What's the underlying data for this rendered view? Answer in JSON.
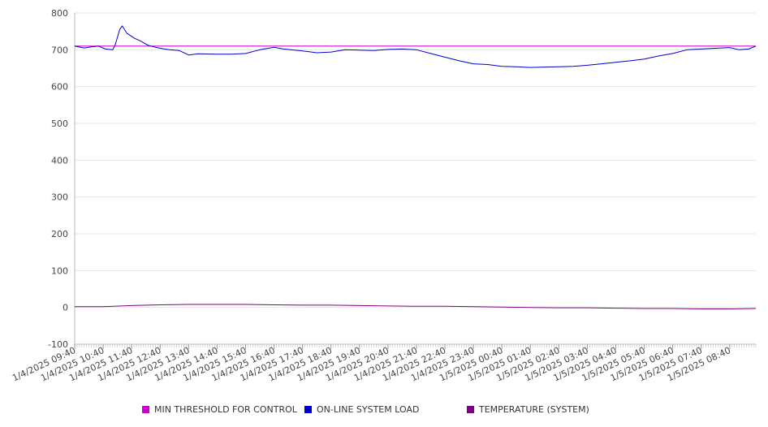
{
  "chart_data": {
    "type": "line",
    "ylim": [
      -100,
      800
    ],
    "yticks": [
      -100,
      0,
      100,
      200,
      300,
      400,
      500,
      600,
      700,
      800
    ],
    "grid": true,
    "legend_placement": "bottom",
    "x_start": "1/4/2025 09:40",
    "x_end": "1/5/2025 09:35",
    "x_tick_labels": [
      "1/4/2025 09:40",
      "1/4/2025 10:40",
      "1/4/2025 11:40",
      "1/4/2025 12:40",
      "1/4/2025 13:40",
      "1/4/2025 14:40",
      "1/4/2025 15:40",
      "1/4/2025 16:40",
      "1/4/2025 17:40",
      "1/4/2025 18:40",
      "1/4/2025 19:40",
      "1/4/2025 20:40",
      "1/4/2025 21:40",
      "1/4/2025 22:40",
      "1/4/2025 23:40",
      "1/5/2025 00:40",
      "1/5/2025 01:40",
      "1/5/2025 02:40",
      "1/5/2025 03:40",
      "1/5/2025 04:40",
      "1/5/2025 05:40",
      "1/5/2025 06:40",
      "1/5/2025 07:40",
      "1/5/2025 08:40"
    ],
    "series": [
      {
        "name": "MIN THRESHOLD FOR CONTROL",
        "color": "#cc00cc",
        "style": "line",
        "x": [
          "1/4/2025 09:40",
          "1/5/2025 09:35"
        ],
        "y": [
          710,
          710
        ]
      },
      {
        "name": "ON-LINE SYSTEM LOAD",
        "color": "#0000cc",
        "style": "line",
        "x": [
          "1/4/2025 09:40",
          "1/4/2025 10:00",
          "1/4/2025 10:15",
          "1/4/2025 10:30",
          "1/4/2025 10:45",
          "1/4/2025 11:00",
          "1/4/2025 11:05",
          "1/4/2025 11:15",
          "1/4/2025 11:20",
          "1/4/2025 11:30",
          "1/4/2025 11:45",
          "1/4/2025 12:00",
          "1/4/2025 12:15",
          "1/4/2025 12:30",
          "1/4/2025 12:45",
          "1/4/2025 13:00",
          "1/4/2025 13:20",
          "1/4/2025 13:40",
          "1/4/2025 14:00",
          "1/4/2025 14:40",
          "1/4/2025 15:10",
          "1/4/2025 15:40",
          "1/4/2025 16:10",
          "1/4/2025 16:40",
          "1/4/2025 17:00",
          "1/4/2025 17:40",
          "1/4/2025 18:10",
          "1/4/2025 18:40",
          "1/4/2025 19:10",
          "1/4/2025 19:40",
          "1/4/2025 20:10",
          "1/4/2025 20:40",
          "1/4/2025 21:10",
          "1/4/2025 21:40",
          "1/4/2025 22:10",
          "1/4/2025 22:40",
          "1/4/2025 23:10",
          "1/4/2025 23:40",
          "1/5/2025 00:10",
          "1/5/2025 00:40",
          "1/5/2025 01:10",
          "1/5/2025 01:40",
          "1/5/2025 02:10",
          "1/5/2025 02:40",
          "1/5/2025 03:10",
          "1/5/2025 03:40",
          "1/5/2025 04:10",
          "1/5/2025 04:40",
          "1/5/2025 05:10",
          "1/5/2025 05:40",
          "1/5/2025 06:10",
          "1/5/2025 06:40",
          "1/5/2025 07:10",
          "1/5/2025 07:40",
          "1/5/2025 08:10",
          "1/5/2025 08:40",
          "1/5/2025 09:00",
          "1/5/2025 09:20",
          "1/5/2025 09:35"
        ],
        "y": [
          710,
          705,
          708,
          710,
          702,
          700,
          712,
          755,
          765,
          745,
          732,
          723,
          712,
          707,
          703,
          700,
          698,
          686,
          689,
          688,
          688,
          690,
          700,
          707,
          702,
          697,
          692,
          694,
          700,
          699,
          698,
          701,
          702,
          700,
          690,
          680,
          670,
          662,
          660,
          655,
          654,
          652,
          653,
          654,
          655,
          658,
          662,
          666,
          670,
          675,
          683,
          690,
          700,
          702,
          704,
          706,
          700,
          702,
          710
        ]
      },
      {
        "name": "TEMPERATURE (SYSTEM)",
        "color": "#800080",
        "style": "line",
        "x": [
          "1/4/2025 09:40",
          "1/4/2025 10:40",
          "1/4/2025 11:40",
          "1/4/2025 12:40",
          "1/4/2025 13:40",
          "1/4/2025 14:40",
          "1/4/2025 15:40",
          "1/4/2025 16:40",
          "1/4/2025 17:40",
          "1/4/2025 18:40",
          "1/4/2025 19:40",
          "1/4/2025 20:40",
          "1/4/2025 21:40",
          "1/4/2025 22:40",
          "1/4/2025 23:40",
          "1/5/2025 00:40",
          "1/5/2025 01:40",
          "1/5/2025 02:40",
          "1/5/2025 03:40",
          "1/5/2025 04:40",
          "1/5/2025 05:40",
          "1/5/2025 06:40",
          "1/5/2025 07:40",
          "1/5/2025 08:40",
          "1/5/2025 09:35"
        ],
        "y": [
          2,
          2,
          5,
          7,
          8,
          8,
          8,
          7,
          6,
          6,
          5,
          4,
          3,
          3,
          2,
          1,
          0,
          -1,
          -1,
          -2,
          -3,
          -3,
          -4,
          -4,
          -3
        ]
      }
    ]
  }
}
